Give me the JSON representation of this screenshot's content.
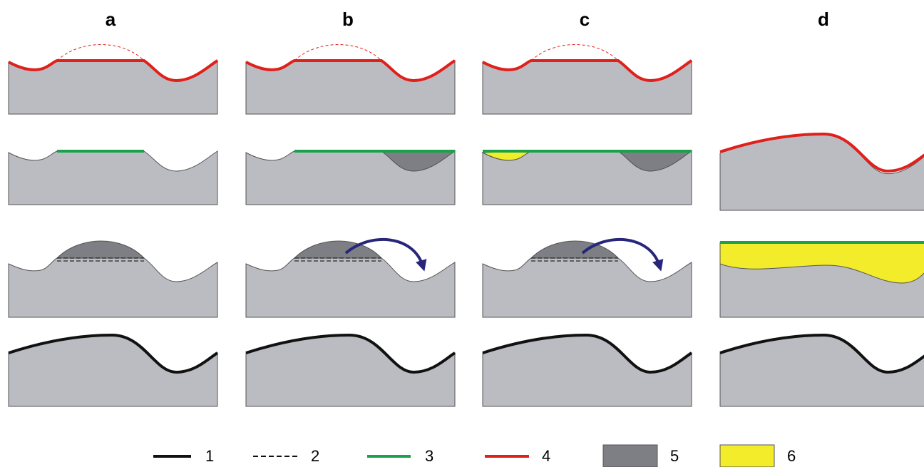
{
  "columns": [
    {
      "label": "a"
    },
    {
      "label": "b"
    },
    {
      "label": "c"
    },
    {
      "label": "d"
    }
  ],
  "legend": [
    {
      "label": "1"
    },
    {
      "label": "2"
    },
    {
      "label": "3"
    },
    {
      "label": "4"
    },
    {
      "label": "5"
    },
    {
      "label": "6"
    }
  ]
}
